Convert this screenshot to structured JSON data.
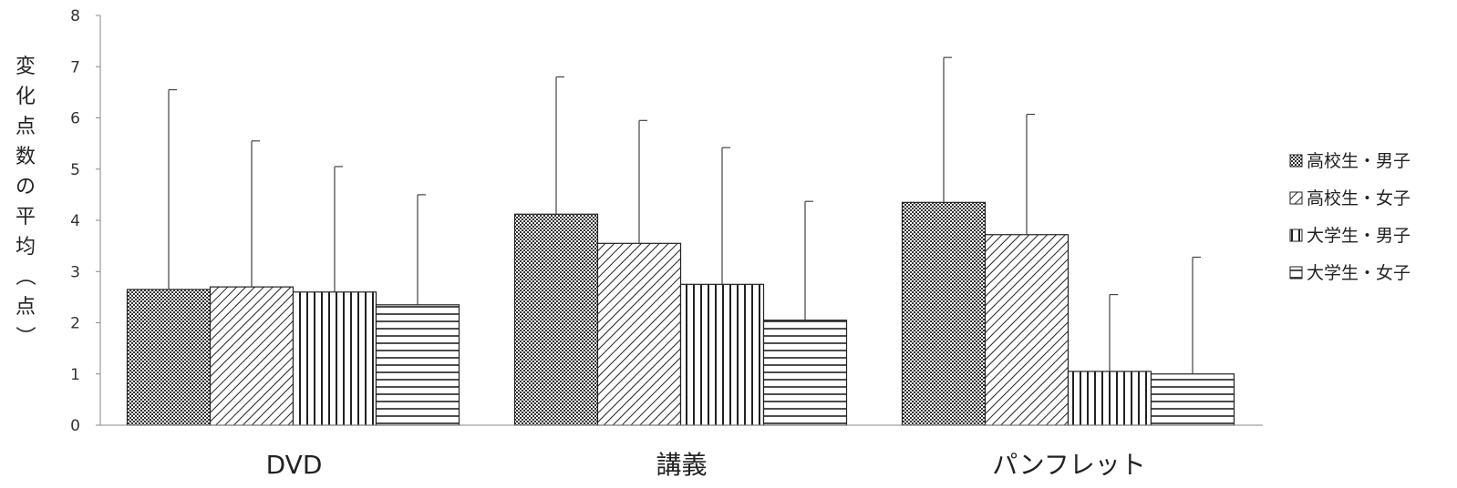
{
  "chart_data": {
    "type": "bar",
    "title": "",
    "xlabel": "",
    "ylabel": "変化点数の平均（点）",
    "ylim": [
      0,
      8
    ],
    "yticks": [
      0,
      1,
      2,
      3,
      4,
      5,
      6,
      7,
      8
    ],
    "categories": [
      "DVD",
      "講義",
      "パンフレット"
    ],
    "series": [
      {
        "name": "高校生・男子",
        "pattern": "crosshatch",
        "values": [
          2.65,
          4.12,
          4.35
        ],
        "error_upper": [
          6.55,
          6.8,
          7.18
        ]
      },
      {
        "name": "高校生・女子",
        "pattern": "diagonal",
        "values": [
          2.7,
          3.55,
          3.72
        ],
        "error_upper": [
          5.55,
          5.95,
          6.07
        ]
      },
      {
        "name": "大学生・男子",
        "pattern": "vertical",
        "values": [
          2.6,
          2.75,
          1.05
        ],
        "error_upper": [
          5.05,
          5.42,
          2.55
        ]
      },
      {
        "name": "大学生・女子",
        "pattern": "horizontal",
        "values": [
          2.35,
          2.05,
          1.0
        ],
        "error_upper": [
          4.5,
          4.37,
          3.28
        ]
      }
    ],
    "legend_position": "right",
    "grid": false
  }
}
